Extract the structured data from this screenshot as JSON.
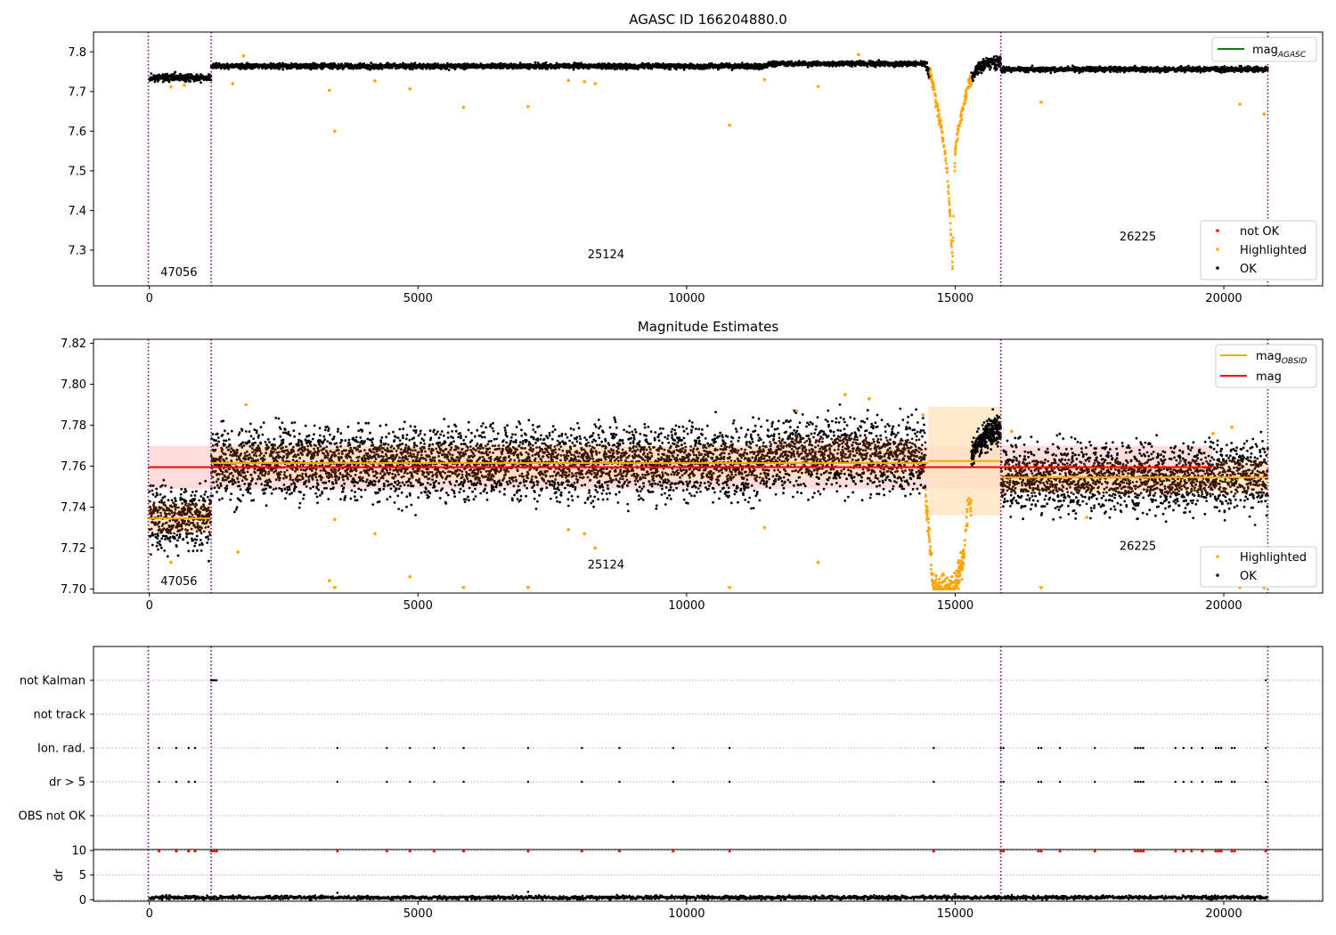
{
  "colors": {
    "ok": "#000000",
    "highlighted": "#ffa500",
    "not_ok": "#ff0000",
    "obs_line": "#800080",
    "mag_agasc_line": "#008000",
    "mag_line": "#ff0000",
    "mag_obsid_line": "#ffa500",
    "mag_band": "#ffdddd",
    "mag_obsid_band": "#ffe3c0",
    "ok_density": "#3a1400"
  },
  "chart_data": [
    {
      "id": "top",
      "type": "scatter",
      "title": "AGASC ID 166204880.0",
      "xlim": [
        -1040,
        21840
      ],
      "ylim": [
        7.21,
        7.85
      ],
      "xticks": [
        0,
        5000,
        10000,
        15000,
        20000
      ],
      "yticks": [
        7.3,
        7.4,
        7.5,
        7.6,
        7.7,
        7.8
      ],
      "obs_boundaries": [
        -20,
        1150,
        15850,
        20820
      ],
      "obs_labels": [
        {
          "text": "47056",
          "x": 550,
          "y": 7.235
        },
        {
          "text": "25124",
          "x": 8500,
          "y": 7.28
        },
        {
          "text": "26225",
          "x": 18400,
          "y": 7.325
        }
      ],
      "legend_lines": [
        {
          "label": "mag",
          "sub": "AGASC",
          "color": "#008000"
        }
      ],
      "legend_points": [
        {
          "label": "not OK",
          "color": "#ff0000"
        },
        {
          "label": "Highlighted",
          "color": "#ffa500"
        },
        {
          "label": "OK",
          "color": "#000000"
        }
      ],
      "segments": [
        {
          "x0": 0,
          "x1": 1150,
          "mean": 7.735,
          "spread": 0.009
        },
        {
          "x0": 1150,
          "x1": 14450,
          "mean": 7.764,
          "spread": 0.006
        },
        {
          "x0": 15850,
          "x1": 20820,
          "mean": 7.756,
          "spread": 0.006
        }
      ],
      "dip": [
        [
          14450,
          7.77
        ],
        [
          14550,
          7.74
        ],
        [
          14650,
          7.67
        ],
        [
          14750,
          7.6
        ],
        [
          14850,
          7.5
        ],
        [
          14900,
          7.4
        ],
        [
          14950,
          7.26
        ],
        [
          15000,
          7.55
        ],
        [
          15050,
          7.6
        ],
        [
          15100,
          7.63
        ],
        [
          15150,
          7.66
        ],
        [
          15250,
          7.72
        ],
        [
          15400,
          7.76
        ],
        [
          15600,
          7.77
        ],
        [
          15850,
          7.775
        ]
      ],
      "highlighted": [
        [
          1750,
          7.79
        ],
        [
          3350,
          7.703
        ],
        [
          3450,
          7.6
        ],
        [
          4200,
          7.727
        ],
        [
          4850,
          7.707
        ],
        [
          5850,
          7.66
        ],
        [
          7050,
          7.662
        ],
        [
          7800,
          7.728
        ],
        [
          8100,
          7.725
        ],
        [
          8300,
          7.72
        ],
        [
          10800,
          7.615
        ],
        [
          11450,
          7.73
        ],
        [
          12450,
          7.713
        ],
        [
          13200,
          7.793
        ],
        [
          16600,
          7.673
        ],
        [
          20300,
          7.668
        ],
        [
          20750,
          7.643
        ],
        [
          1550,
          7.72
        ],
        [
          650,
          7.716
        ],
        [
          400,
          7.712
        ]
      ]
    },
    {
      "id": "middle",
      "type": "scatter",
      "title": "Magnitude Estimates",
      "xlim": [
        -1040,
        21840
      ],
      "ylim": [
        7.698,
        7.822
      ],
      "xticks": [
        0,
        5000,
        10000,
        15000,
        20000
      ],
      "yticks": [
        7.7,
        7.72,
        7.74,
        7.76,
        7.78,
        7.8,
        7.82
      ],
      "ytick_labels": [
        "7.70",
        "7.72",
        "7.74",
        "7.76",
        "7.78",
        "7.80",
        "7.82"
      ],
      "obs_boundaries": [
        -20,
        1150,
        15850,
        20820
      ],
      "obs_labels": [
        {
          "text": "47056",
          "x": 550,
          "y": 7.702
        },
        {
          "text": "25124",
          "x": 8500,
          "y": 7.71
        },
        {
          "text": "26225",
          "x": 18400,
          "y": 7.719
        }
      ],
      "mag": {
        "value": 7.7595,
        "band": [
          7.749,
          7.77
        ],
        "x0": -20,
        "x1": 21840
      },
      "mag_obsid": [
        {
          "x0": -20,
          "x1": 1150,
          "value": 7.7345,
          "band": [
            7.728,
            7.741
          ]
        },
        {
          "x0": 1150,
          "x1": 14500,
          "value": 7.7615,
          "band": [
            7.754,
            7.769
          ]
        },
        {
          "x0": 14500,
          "x1": 15850,
          "value": 7.7625,
          "band": [
            7.736,
            7.789
          ]
        },
        {
          "x0": 15850,
          "x1": 20820,
          "value": 7.7545,
          "band": [
            7.748,
            7.761
          ]
        }
      ],
      "legend_lines": [
        {
          "label": "mag",
          "sub": "OBSID",
          "color": "#ffa500"
        },
        {
          "label": "mag",
          "sub": "",
          "color": "#ff0000"
        }
      ],
      "legend_points": [
        {
          "label": "Highlighted",
          "color": "#ffa500"
        },
        {
          "label": "OK",
          "color": "#000000"
        }
      ],
      "segments": [
        {
          "x0": 0,
          "x1": 1150,
          "mean": 7.7345,
          "spread": 0.014
        },
        {
          "x0": 1150,
          "x1": 14450,
          "mean": 7.7615,
          "spread": 0.016
        },
        {
          "x0": 15850,
          "x1": 20820,
          "mean": 7.7545,
          "spread": 0.015
        }
      ],
      "dip_highlighted": [
        [
          14450,
          7.745
        ],
        [
          14500,
          7.73
        ],
        [
          14550,
          7.715
        ],
        [
          14600,
          7.7
        ],
        [
          14800,
          7.7
        ],
        [
          15000,
          7.7
        ],
        [
          15150,
          7.715
        ],
        [
          15200,
          7.73
        ],
        [
          15250,
          7.74
        ]
      ],
      "dip_ok": [
        [
          15300,
          7.765
        ],
        [
          15400,
          7.77
        ],
        [
          15500,
          7.772
        ],
        [
          15600,
          7.775
        ],
        [
          15700,
          7.778
        ],
        [
          15850,
          7.776
        ]
      ],
      "highlighted": [
        [
          1800,
          7.79
        ],
        [
          1650,
          7.718
        ],
        [
          3350,
          7.704
        ],
        [
          3450,
          7.734
        ],
        [
          4200,
          7.727
        ],
        [
          4850,
          7.706
        ],
        [
          7800,
          7.729
        ],
        [
          8100,
          7.727
        ],
        [
          8300,
          7.72
        ],
        [
          11450,
          7.73
        ],
        [
          12450,
          7.713
        ],
        [
          12950,
          7.795
        ],
        [
          13400,
          7.793
        ],
        [
          14400,
          7.785
        ],
        [
          16050,
          7.777
        ],
        [
          20150,
          7.779
        ],
        [
          19800,
          7.776
        ],
        [
          17450,
          7.735
        ],
        [
          12050,
          7.787
        ],
        [
          400,
          7.713
        ]
      ],
      "clipped_low": [
        3450,
        5850,
        7050,
        10800,
        16600,
        20300,
        20750
      ]
    },
    {
      "id": "flags",
      "type": "scatter",
      "xlim": [
        -1040,
        21840
      ],
      "categories": [
        "not Kalman",
        "not track",
        "Ion. rad.",
        "dr > 5",
        "OBS not OK"
      ],
      "flag_x": {
        "not Kalman": [
          1150,
          1170,
          1190,
          1210,
          1230,
          1250,
          20780
        ],
        "not track": [],
        "Ion. rad.": [
          180,
          500,
          730,
          850,
          3500,
          4420,
          4850,
          5300,
          5850,
          7050,
          8050,
          8750,
          9750,
          10800,
          14600,
          15850,
          15900,
          16550,
          16600,
          16950,
          17600,
          18350,
          18400,
          18450,
          18500,
          19100,
          19250,
          19400,
          19600,
          19850,
          19900,
          19950,
          20150,
          20200,
          20780
        ],
        "dr > 5": [
          180,
          500,
          730,
          850,
          3500,
          4420,
          4850,
          5300,
          5850,
          7050,
          8050,
          8750,
          9750,
          10800,
          14600,
          15850,
          15900,
          16550,
          16600,
          16950,
          17600,
          18350,
          18400,
          18450,
          18500,
          19100,
          19250,
          19400,
          19600,
          19850,
          19900,
          19950,
          20150,
          20200,
          20780
        ],
        "OBS not OK": []
      },
      "obs_boundaries": [
        -20,
        1150,
        15850,
        20820
      ]
    },
    {
      "id": "dr",
      "type": "scatter",
      "xlim": [
        -1040,
        21840
      ],
      "ylim": [
        -0.3,
        10.2
      ],
      "yticks": [
        0,
        5,
        10
      ],
      "ylabel": "dr",
      "xticks": [
        0,
        5000,
        10000,
        15000,
        20000
      ],
      "obs_boundaries": [
        -20,
        1150,
        15850,
        20820
      ],
      "clip_value": 10,
      "clipped_x": [
        180,
        500,
        730,
        850,
        1150,
        1200,
        1250,
        3500,
        4420,
        4850,
        5300,
        5850,
        7050,
        8050,
        8750,
        9750,
        10800,
        14600,
        15850,
        15900,
        16550,
        16600,
        16950,
        17600,
        18350,
        18400,
        18450,
        18500,
        19100,
        19250,
        19400,
        19600,
        19850,
        19900,
        19950,
        20150,
        20200,
        20780
      ],
      "baseline": {
        "mean": 0.45,
        "spread": 0.35,
        "x0": 0,
        "x1": 20820
      },
      "extra_points": [
        [
          3500,
          1.4
        ],
        [
          7050,
          1.6
        ],
        [
          14800,
          0.9
        ],
        [
          15000,
          1.1
        ]
      ]
    }
  ]
}
